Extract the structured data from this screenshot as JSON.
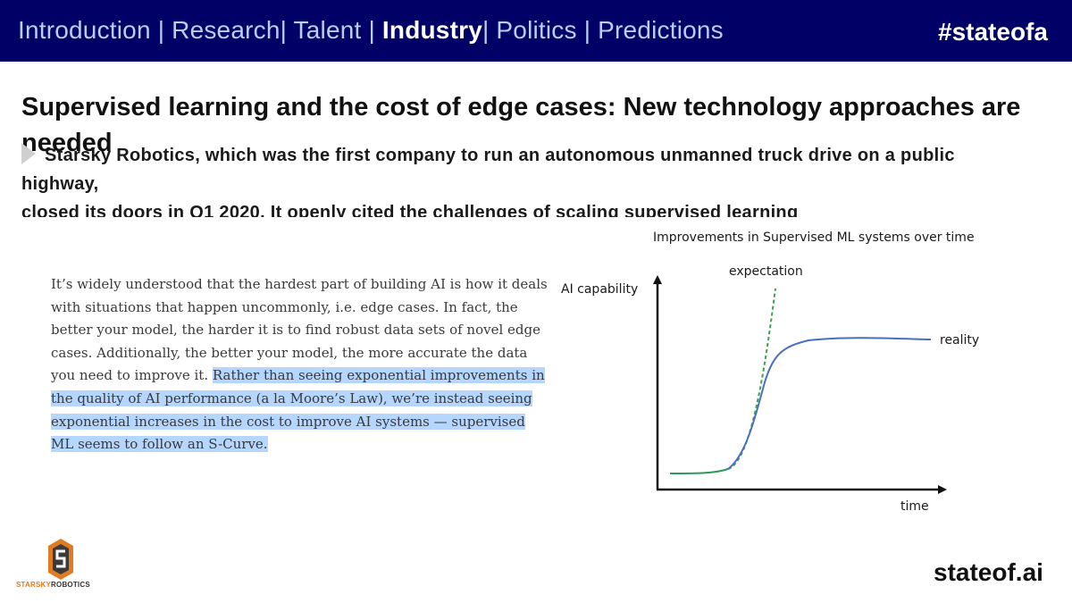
{
  "nav": {
    "items": [
      {
        "label": "Introduction",
        "active": false
      },
      {
        "label": " | ",
        "sep": true
      },
      {
        "label": "Research",
        "active": false
      },
      {
        "label": "| ",
        "sep": true
      },
      {
        "label": "Talent",
        "active": false
      },
      {
        "label": " | ",
        "sep": true
      },
      {
        "label": "Industry",
        "active": true
      },
      {
        "label": "| ",
        "sep": true
      },
      {
        "label": "Politics",
        "active": false
      },
      {
        "label": " | ",
        "sep": true
      },
      {
        "label": "Predictions",
        "active": false
      }
    ],
    "hashtag": "#stateofa"
  },
  "slide": {
    "title": "Supervised learning and the cost of edge cases: New technology approaches are needed",
    "bullet_line1": "Starsky Robotics, which was the first company to run an autonomous unmanned truck drive on a public highway,",
    "bullet_line2": "closed its doors in Q1 2020. It openly cited the challenges of scaling supervised learning"
  },
  "quote": {
    "plain": "It’s widely understood that the hardest part of building AI is how it deals with situations that happen uncommonly, i.e. edge cases. In fact, the better your model, the harder it is to find robust data sets of novel edge cases. Additionally, the better your model, the more accurate the data you need to improve it. ",
    "highlighted": "Rather than seeing exponential improvements in the quality of AI performance (a la Moore’s Law), we’re instead seeing exponential increases in the cost to improve AI systems — supervised ML seems to follow an S-Curve."
  },
  "chart_data": {
    "type": "line",
    "title": "Improvements in Supervised ML systems over time",
    "xlabel": "time",
    "ylabel": "AI capability",
    "series": [
      {
        "name": "expectation",
        "style": "dashed",
        "color": "#3aa34a"
      },
      {
        "name": "reality",
        "style": "solid",
        "color": "#4a6fc2"
      }
    ],
    "colors": {
      "axes": "#111111",
      "reality": "#4a6fc2",
      "expectation": "#3aa34a",
      "start_segment": "#2e9a5a"
    }
  },
  "logo": {
    "text_a": "STARSKY",
    "text_b": "ROBOTICS",
    "colors": {
      "orange": "#e07b22",
      "dark": "#3a3a3a"
    }
  },
  "footer": {
    "label": "stateof.ai"
  }
}
